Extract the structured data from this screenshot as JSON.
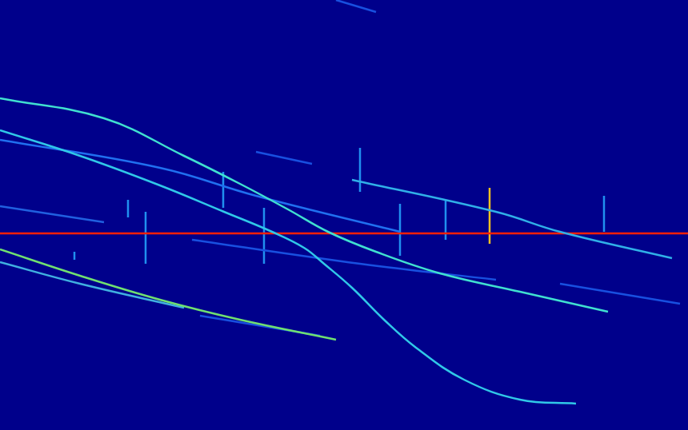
{
  "chart_data": {
    "type": "line",
    "xlim": [
      0,
      860
    ],
    "ylim": [
      0,
      538
    ],
    "tick_labels": false,
    "grid": false,
    "series": [
      {
        "color": "#40e0d0",
        "x": [
          0,
          130,
          230,
          300,
          360,
          410,
          470,
          550,
          650,
          760
        ],
        "values": [
          415,
          390,
          343,
          308,
          276,
          248,
          223,
          196,
          173,
          148
        ]
      },
      {
        "color": "#30c8e8",
        "x": [
          0,
          100,
          200,
          280,
          340,
          380,
          405,
          440,
          480,
          520,
          580,
          650,
          720
        ],
        "values": [
          375,
          343,
          306,
          273,
          248,
          228,
          208,
          178,
          138,
          103,
          63,
          38,
          33
        ]
      },
      {
        "color": "#70e070",
        "x": [
          0,
          100,
          200,
          300,
          420
        ],
        "values": [
          226,
          193,
          163,
          138,
          113
        ]
      },
      {
        "color": "#40b0e0",
        "x": [
          0,
          100,
          230
        ],
        "values": [
          210,
          183,
          153
        ]
      },
      {
        "color": "#2060e0",
        "x": [
          0,
          130
        ],
        "values": [
          280,
          260
        ]
      },
      {
        "color": "#2070f0",
        "x": [
          0,
          200,
          320,
          500
        ],
        "values": [
          363,
          328,
          293,
          248
        ]
      },
      {
        "color": "#30b0e8",
        "x": [
          440,
          620,
          700,
          840
        ],
        "values": [
          313,
          273,
          248,
          215
        ]
      },
      {
        "color": "#1850e0",
        "x": [
          240,
          450,
          620
        ],
        "values": [
          238,
          208,
          188
        ]
      },
      {
        "color": "#1850e0",
        "x": [
          700,
          850
        ],
        "values": [
          183,
          158
        ]
      },
      {
        "color": "#1850e0",
        "x": [
          250,
          400
        ],
        "values": [
          143,
          118
        ]
      },
      {
        "color": "#1850e0",
        "x": [
          320,
          390
        ],
        "values": [
          348,
          333
        ]
      },
      {
        "color": "#1850e0",
        "x": [
          420,
          470
        ],
        "values": [
          538,
          523
        ]
      },
      {
        "color": "#ff2000",
        "x": [
          0,
          860
        ],
        "values": [
          246,
          246
        ]
      },
      {
        "color": "#2090f0",
        "x": [
          160,
          160
        ],
        "values": [
          288,
          266
        ]
      },
      {
        "color": "#2090f0",
        "x": [
          182,
          182
        ],
        "values": [
          273,
          208
        ]
      },
      {
        "color": "#2090f0",
        "x": [
          279,
          279
        ],
        "values": [
          323,
          278
        ]
      },
      {
        "color": "#2090f0",
        "x": [
          330,
          330
        ],
        "values": [
          278,
          208
        ]
      },
      {
        "color": "#2090f0",
        "x": [
          450,
          450
        ],
        "values": [
          353,
          298
        ]
      },
      {
        "color": "#2090f0",
        "x": [
          500,
          500
        ],
        "values": [
          283,
          218
        ]
      },
      {
        "color": "#2090f0",
        "x": [
          557,
          557
        ],
        "values": [
          288,
          238
        ]
      },
      {
        "color": "#f0c020",
        "x": [
          612,
          612
        ],
        "values": [
          303,
          233
        ]
      },
      {
        "color": "#2090f0",
        "x": [
          755,
          755
        ],
        "values": [
          293,
          248
        ]
      },
      {
        "color": "#2090f0",
        "x": [
          93,
          93
        ],
        "values": [
          223,
          213
        ]
      }
    ]
  }
}
